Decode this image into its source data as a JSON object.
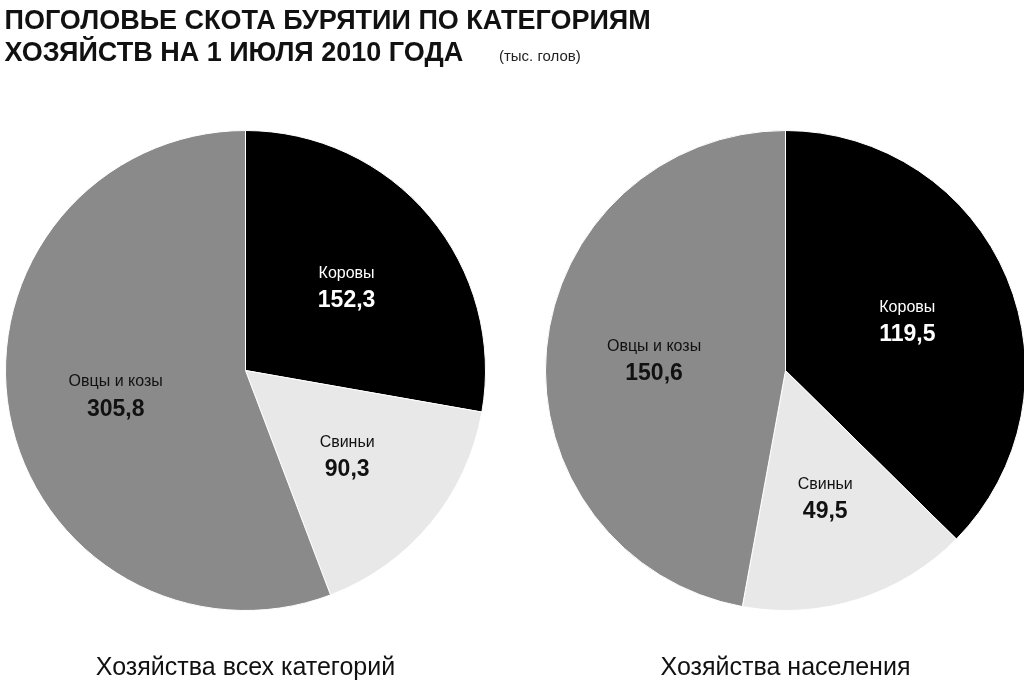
{
  "chart_data": [
    {
      "type": "pie",
      "title": "ПОГОЛОВЬЕ СКОТА БУРЯТИИ ПО КАТЕГОРИЯМ ХОЗЯЙСТВ НА 1 ИЮЛЯ 2010 ГОДА",
      "subtitle": "(тыс. голов)",
      "xlabel": "Хозяйства всех категорий",
      "categories": [
        "Коровы",
        "Свиньи",
        "Овцы и козы"
      ],
      "values": [
        152.3,
        90.3,
        305.8
      ],
      "colors": [
        "#000000",
        "#e8e8e8",
        "#8a8a8a"
      ],
      "value_labels": [
        "152,3",
        "90,3",
        "305,8"
      ]
    },
    {
      "type": "pie",
      "xlabel": "Хозяйства населения",
      "categories": [
        "Коровы",
        "Свиньи",
        "Овцы и козы"
      ],
      "values": [
        119.5,
        49.5,
        150.6
      ],
      "colors": [
        "#000000",
        "#e8e8e8",
        "#8a8a8a"
      ],
      "value_labels": [
        "119,5",
        "49,5",
        "150,6"
      ]
    }
  ]
}
